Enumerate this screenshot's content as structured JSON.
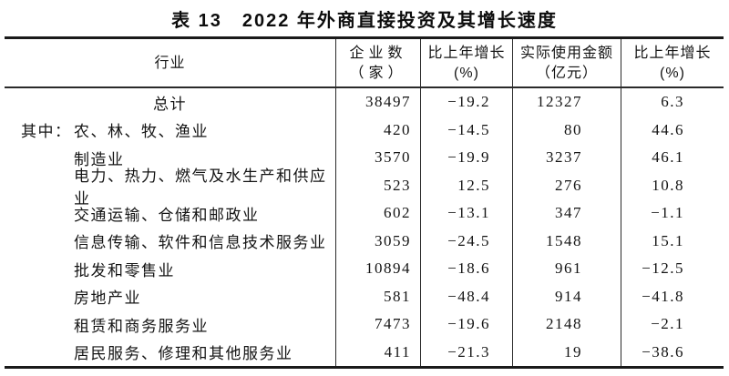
{
  "title": "表 13　2022 年外商直接投资及其增长速度",
  "table": {
    "header": {
      "industry": "行业",
      "cols": [
        {
          "line1": "企业数",
          "line2": "（家）"
        },
        {
          "line1": "比上年增长",
          "line2": "(%)"
        },
        {
          "line1": "实际使用金额",
          "line2": "（亿元）"
        },
        {
          "line1": "比上年增长",
          "line2": "(%)"
        }
      ]
    },
    "rows": [
      {
        "prefix": "",
        "industry": "总计",
        "enterprises": "38497",
        "growth_enterprises": "−19.2",
        "amount": "12327",
        "growth_amount": "6.3"
      },
      {
        "prefix": "其中：",
        "industry": "农、林、牧、渔业",
        "enterprises": "420",
        "growth_enterprises": "−14.5",
        "amount": "80",
        "growth_amount": "44.6"
      },
      {
        "prefix": "",
        "industry": "制造业",
        "enterprises": "3570",
        "growth_enterprises": "−19.9",
        "amount": "3237",
        "growth_amount": "46.1"
      },
      {
        "prefix": "",
        "industry": "电力、热力、燃气及水生产和供应业",
        "enterprises": "523",
        "growth_enterprises": "12.5",
        "amount": "276",
        "growth_amount": "10.8"
      },
      {
        "prefix": "",
        "industry": "交通运输、仓储和邮政业",
        "enterprises": "602",
        "growth_enterprises": "−13.1",
        "amount": "347",
        "growth_amount": "−1.1"
      },
      {
        "prefix": "",
        "industry": "信息传输、软件和信息技术服务业",
        "enterprises": "3059",
        "growth_enterprises": "−24.5",
        "amount": "1548",
        "growth_amount": "15.1"
      },
      {
        "prefix": "",
        "industry": "批发和零售业",
        "enterprises": "10894",
        "growth_enterprises": "−18.6",
        "amount": "961",
        "growth_amount": "−12.5"
      },
      {
        "prefix": "",
        "industry": "房地产业",
        "enterprises": "581",
        "growth_enterprises": "−48.4",
        "amount": "914",
        "growth_amount": "−41.8"
      },
      {
        "prefix": "",
        "industry": "租赁和商务服务业",
        "enterprises": "7473",
        "growth_enterprises": "−19.6",
        "amount": "2148",
        "growth_amount": "−2.1"
      },
      {
        "prefix": "",
        "industry": "居民服务、修理和其他服务业",
        "enterprises": "411",
        "growth_enterprises": "−21.3",
        "amount": "19",
        "growth_amount": "−38.6"
      }
    ]
  }
}
